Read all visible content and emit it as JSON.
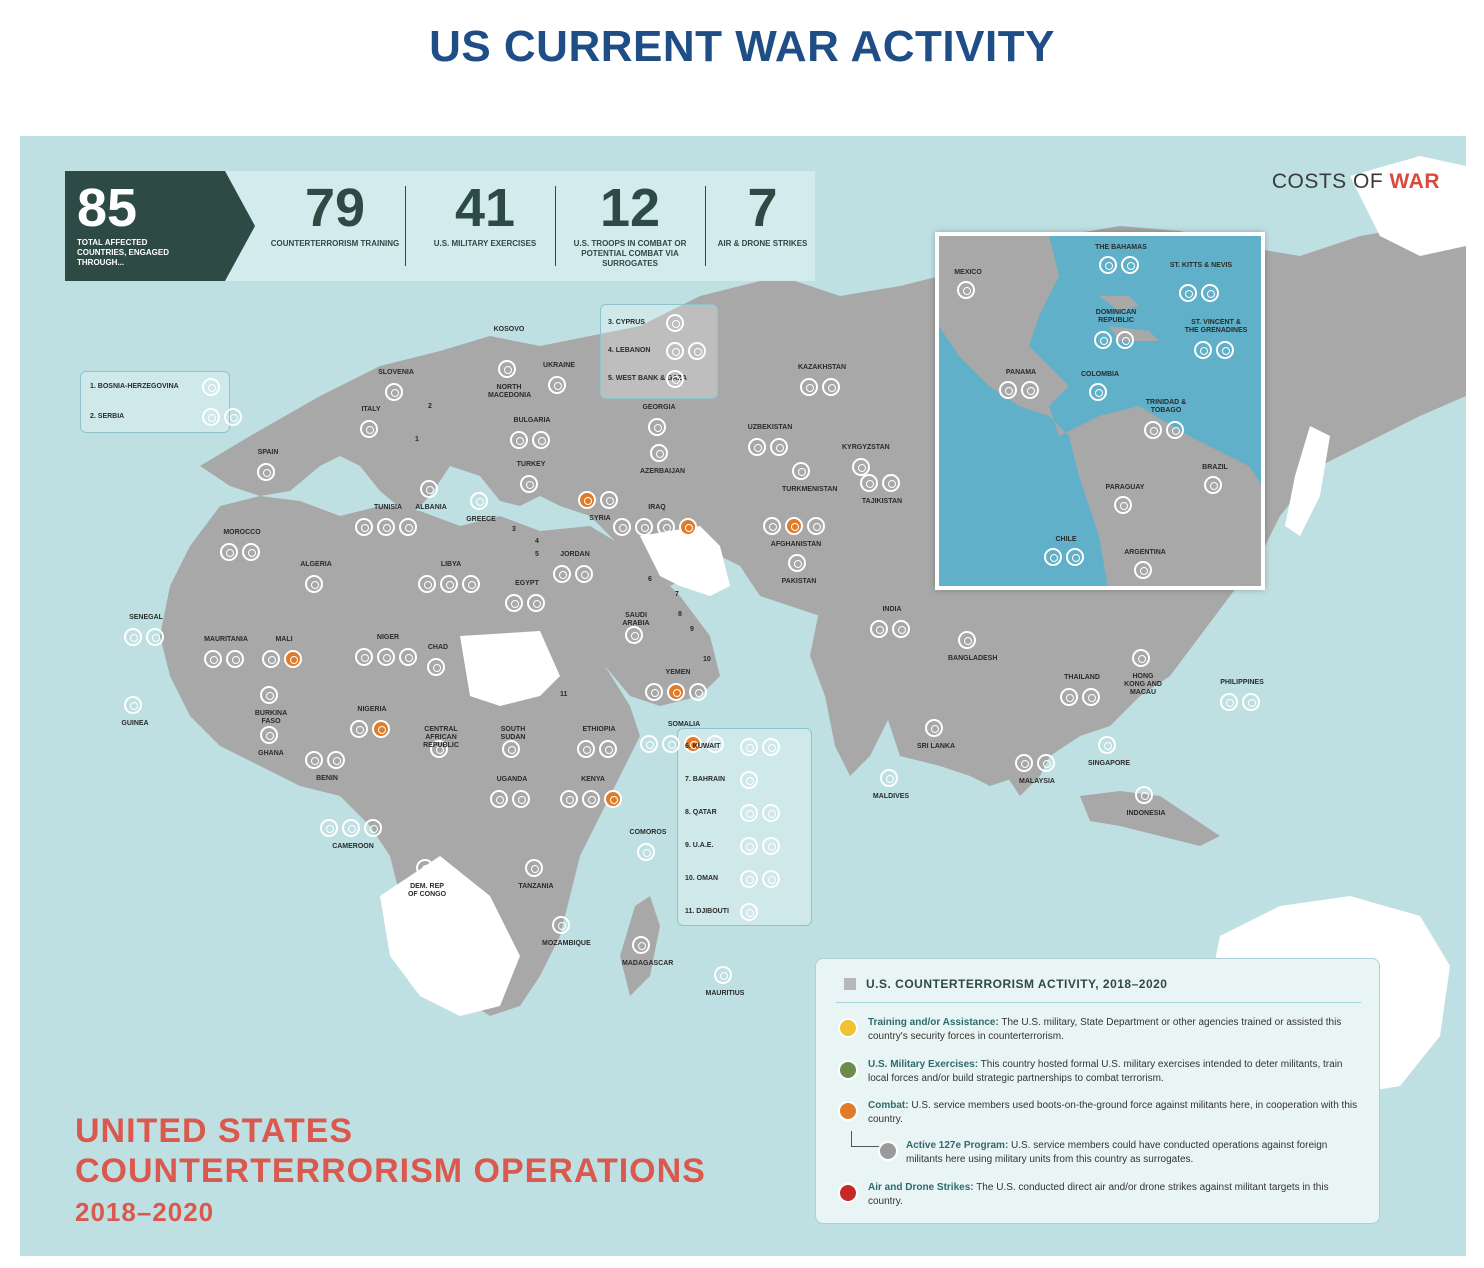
{
  "page_title": "US CURRENT WAR ACTIVITY",
  "brand": {
    "text": "COSTS OF ",
    "accent": "WAR"
  },
  "stats": {
    "total": {
      "value": "85",
      "label": "TOTAL AFFECTED COUNTRIES, ENGAGED THROUGH..."
    },
    "items": [
      {
        "value": "79",
        "label": "COUNTERTERRORISM TRAINING"
      },
      {
        "value": "41",
        "label": "U.S. MILITARY EXERCISES"
      },
      {
        "value": "12",
        "label": "U.S. TROOPS IN COMBAT OR POTENTIAL COMBAT VIA SURROGATES"
      },
      {
        "value": "7",
        "label": "AIR & DRONE STRIKES"
      }
    ]
  },
  "big_title": {
    "line1": "UNITED STATES",
    "line2": "COUNTERTERRORISM OPERATIONS",
    "years": "2018–2020"
  },
  "colors": {
    "training": "#f1c232",
    "exercises": "#6b8c4c",
    "combat": "#e07b2a",
    "program127e": "#9a9a9a",
    "strikes": "#c62828",
    "land": "#a8a8a8",
    "sea": "#bfe0e2",
    "title": "#1f4e86",
    "accent": "#d9594f"
  },
  "numbered_boxes": {
    "balkans": [
      {
        "label": "1. BOSNIA-HERZEGOVINA",
        "icons": [
          "training"
        ]
      },
      {
        "label": "2. SERBIA",
        "icons": [
          "training",
          "exercises"
        ]
      }
    ],
    "levant": [
      {
        "label": "3. CYPRUS",
        "icons": [
          "training"
        ]
      },
      {
        "label": "4. LEBANON",
        "icons": [
          "training",
          "exercises"
        ]
      },
      {
        "label": "5. WEST BANK & GAZA",
        "icons": [
          "training"
        ]
      }
    ],
    "gulf": [
      {
        "label": "6. KUWAIT",
        "icons": [
          "training",
          "exercises"
        ]
      },
      {
        "label": "7. BAHRAIN",
        "icons": [
          "training"
        ]
      },
      {
        "label": "8. QATAR",
        "icons": [
          "training",
          "exercises"
        ]
      },
      {
        "label": "9. U.A.E.",
        "icons": [
          "training",
          "exercises"
        ]
      },
      {
        "label": "10. OMAN",
        "icons": [
          "training",
          "exercises"
        ]
      },
      {
        "label": "11. DJIBOUTI",
        "icons": [
          "training"
        ]
      }
    ]
  },
  "countries": [
    {
      "name": "SLOVENIA",
      "icons": [
        "training"
      ]
    },
    {
      "name": "KOSOVO",
      "icons": []
    },
    {
      "name": "UKRAINE",
      "icons": [
        "training"
      ]
    },
    {
      "name": "NORTH MACEDONIA",
      "icons": [
        "training"
      ]
    },
    {
      "name": "ITALY",
      "icons": [
        "training"
      ]
    },
    {
      "name": "BULGARIA",
      "icons": [
        "training",
        "exercises"
      ]
    },
    {
      "name": "SPAIN",
      "icons": [
        "exercises"
      ]
    },
    {
      "name": "TURKEY",
      "icons": [
        "training"
      ]
    },
    {
      "name": "ALBANIA",
      "icons": [
        "training"
      ]
    },
    {
      "name": "GREECE",
      "icons": [
        "exercises"
      ]
    },
    {
      "name": "TUNISIA",
      "icons": [
        "training",
        "exercises",
        "program127e"
      ]
    },
    {
      "name": "MOROCCO",
      "icons": [
        "training",
        "exercises"
      ]
    },
    {
      "name": "ALGERIA",
      "icons": [
        "training"
      ]
    },
    {
      "name": "LIBYA",
      "icons": [
        "training",
        "program127e",
        "strikes"
      ]
    },
    {
      "name": "EGYPT",
      "icons": [
        "training",
        "exercises"
      ]
    },
    {
      "name": "SYRIA",
      "icons": [
        "combat",
        "strikes"
      ]
    },
    {
      "name": "IRAQ",
      "icons": [
        "training",
        "exercises",
        "strikes",
        "combat"
      ]
    },
    {
      "name": "JORDAN",
      "icons": [
        "training",
        "exercises"
      ]
    },
    {
      "name": "GEORGIA",
      "icons": [
        "training"
      ]
    },
    {
      "name": "AZERBAIJAN",
      "icons": [
        "training"
      ]
    },
    {
      "name": "SAUDI ARABIA",
      "icons": [
        "exercises"
      ]
    },
    {
      "name": "KAZAKHSTAN",
      "icons": [
        "training",
        "exercises"
      ]
    },
    {
      "name": "UZBEKISTAN",
      "icons": [
        "training",
        "exercises"
      ]
    },
    {
      "name": "KYRGYZSTAN",
      "icons": [
        "training"
      ]
    },
    {
      "name": "TURKMENISTAN",
      "icons": [
        "training"
      ]
    },
    {
      "name": "TAJIKISTAN",
      "icons": [
        "training",
        "exercises"
      ]
    },
    {
      "name": "AFGHANISTAN",
      "icons": [
        "training",
        "combat",
        "strikes"
      ]
    },
    {
      "name": "PAKISTAN",
      "icons": [
        "strikes"
      ]
    },
    {
      "name": "INDIA",
      "icons": [
        "training",
        "exercises"
      ]
    },
    {
      "name": "BANGLADESH",
      "icons": [
        "training"
      ]
    },
    {
      "name": "SENEGAL",
      "icons": [
        "training",
        "exercises"
      ]
    },
    {
      "name": "MAURITANIA",
      "icons": [
        "training",
        "exercises"
      ]
    },
    {
      "name": "MALI",
      "icons": [
        "training",
        "combat"
      ]
    },
    {
      "name": "NIGER",
      "icons": [
        "training",
        "exercises",
        "program127e"
      ]
    },
    {
      "name": "CHAD",
      "icons": [
        "training"
      ]
    },
    {
      "name": "GUINEA",
      "icons": [
        "training"
      ]
    },
    {
      "name": "BURKINA FASO",
      "icons": [
        "training"
      ]
    },
    {
      "name": "GHANA",
      "icons": [
        "exercises"
      ]
    },
    {
      "name": "NIGERIA",
      "icons": [
        "training",
        "combat"
      ]
    },
    {
      "name": "BENIN",
      "icons": [
        "training",
        "exercises"
      ]
    },
    {
      "name": "CAMEROON",
      "icons": [
        "training",
        "exercises",
        "program127e"
      ]
    },
    {
      "name": "CENTRAL AFRICAN REPUBLIC",
      "icons": [
        "training"
      ]
    },
    {
      "name": "SOUTH SUDAN",
      "icons": [
        "training"
      ]
    },
    {
      "name": "ETHIOPIA",
      "icons": [
        "training",
        "exercises"
      ]
    },
    {
      "name": "SOMALIA",
      "icons": [
        "training",
        "exercises",
        "combat",
        "strikes"
      ]
    },
    {
      "name": "YEMEN",
      "icons": [
        "training",
        "combat",
        "strikes"
      ]
    },
    {
      "name": "UGANDA",
      "icons": [
        "training",
        "exercises"
      ]
    },
    {
      "name": "KENYA",
      "icons": [
        "training",
        "exercises",
        "combat"
      ]
    },
    {
      "name": "DEM. REP OF CONGO",
      "icons": [
        "training"
      ]
    },
    {
      "name": "TANZANIA",
      "icons": [
        "training"
      ]
    },
    {
      "name": "COMOROS",
      "icons": [
        "training"
      ]
    },
    {
      "name": "MOZAMBIQUE",
      "icons": [
        "training"
      ]
    },
    {
      "name": "MADAGASCAR",
      "icons": [
        "training"
      ]
    },
    {
      "name": "MAURITIUS",
      "icons": [
        "training"
      ]
    },
    {
      "name": "MALDIVES",
      "icons": [
        "training"
      ]
    },
    {
      "name": "SRI LANKA",
      "icons": [
        "training"
      ]
    },
    {
      "name": "THAILAND",
      "icons": [
        "training",
        "exercises"
      ]
    },
    {
      "name": "MALAYSIA",
      "icons": [
        "training",
        "exercises"
      ]
    },
    {
      "name": "SINGAPORE",
      "icons": [
        "exercises"
      ]
    },
    {
      "name": "INDONESIA",
      "icons": [
        "training"
      ]
    },
    {
      "name": "HONG KONG AND MACAU",
      "icons": [
        "training"
      ]
    },
    {
      "name": "PHILIPPINES",
      "icons": [
        "training",
        "exercises"
      ]
    }
  ],
  "inset_countries": [
    {
      "name": "MEXICO",
      "icons": [
        "training"
      ]
    },
    {
      "name": "THE BAHAMAS",
      "icons": [
        "training",
        "exercises"
      ]
    },
    {
      "name": "ST. KITTS & NEVIS",
      "icons": [
        "training",
        "exercises"
      ]
    },
    {
      "name": "DOMINICAN REPUBLIC",
      "icons": [
        "training",
        "exercises"
      ]
    },
    {
      "name": "ST. VINCENT & THE GRENADINES",
      "icons": [
        "training",
        "exercises"
      ]
    },
    {
      "name": "PANAMA",
      "icons": [
        "training",
        "exercises"
      ]
    },
    {
      "name": "COLOMBIA",
      "icons": [
        "training"
      ]
    },
    {
      "name": "TRINIDAD & TOBAGO",
      "icons": [
        "training",
        "exercises"
      ]
    },
    {
      "name": "BRAZIL",
      "icons": [
        "training"
      ]
    },
    {
      "name": "PARAGUAY",
      "icons": [
        "training"
      ]
    },
    {
      "name": "CHILE",
      "icons": [
        "training",
        "exercises"
      ]
    },
    {
      "name": "ARGENTINA",
      "icons": [
        "training"
      ]
    }
  ],
  "small_numbers": [
    "1",
    "2",
    "3",
    "4",
    "5",
    "6",
    "7",
    "8",
    "9",
    "10",
    "11"
  ],
  "legend": {
    "title": "U.S. COUNTERTERRORISM ACTIVITY, 2018–2020",
    "rows": [
      {
        "type": "training",
        "head": "Training and/or Assistance:",
        "text": " The U.S. military, State Department or other agencies trained or assisted this country's security forces in counterterrorism."
      },
      {
        "type": "exercises",
        "head": "U.S. Military Exercises:",
        "text": " This country hosted formal U.S. military exercises intended to deter militants, train local forces and/or build strategic partnerships to combat terrorism."
      },
      {
        "type": "combat",
        "head": "Combat:",
        "text": " U.S. service members used boots-on-the-ground force against militants here, in cooperation with this country."
      },
      {
        "type": "program127e",
        "head": "Active 127e Program:",
        "text": " U.S. service members could have conducted operations against foreign militants here using military units from this country as surrogates."
      },
      {
        "type": "strikes",
        "head": "Air and Drone Strikes:",
        "text": " The U.S. conducted direct air and/or drone strikes against militant targets in this country."
      }
    ]
  }
}
